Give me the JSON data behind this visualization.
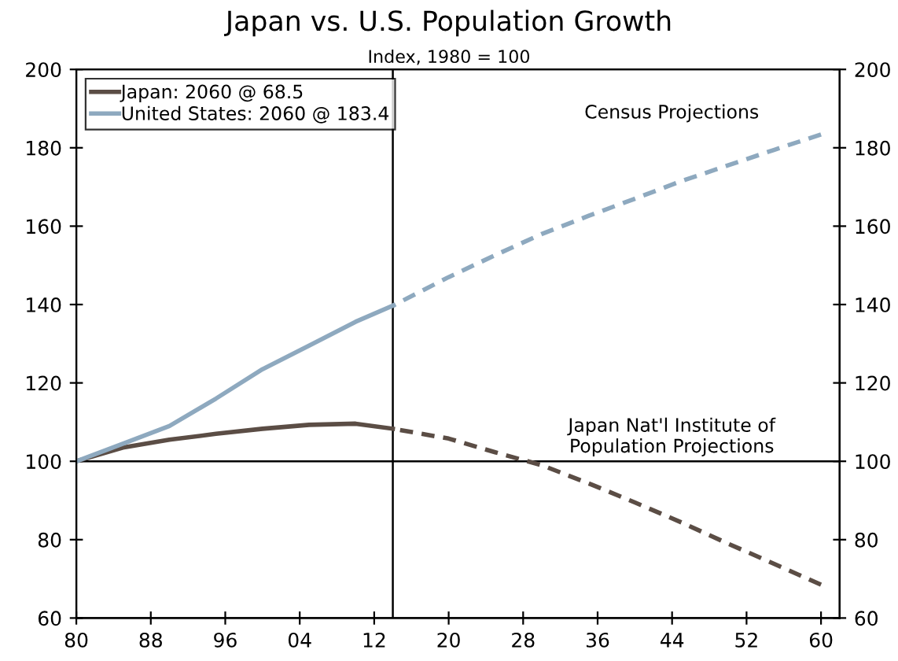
{
  "chart_data": {
    "type": "line",
    "title": "Japan vs. U.S. Population Growth",
    "subtitle": "Index, 1980 = 100",
    "xlim": [
      1980,
      2062
    ],
    "xticks": [
      {
        "value": 1980,
        "label": "80"
      },
      {
        "value": 1988,
        "label": "88"
      },
      {
        "value": 1996,
        "label": "96"
      },
      {
        "value": 2004,
        "label": "04"
      },
      {
        "value": 2012,
        "label": "12"
      },
      {
        "value": 2020,
        "label": "20"
      },
      {
        "value": 2028,
        "label": "28"
      },
      {
        "value": 2036,
        "label": "36"
      },
      {
        "value": 2044,
        "label": "44"
      },
      {
        "value": 2052,
        "label": "52"
      },
      {
        "value": 2060,
        "label": "60"
      }
    ],
    "ylim": [
      60,
      200
    ],
    "yticks": [
      60,
      80,
      100,
      120,
      140,
      160,
      180,
      200
    ],
    "y2lim": [
      60,
      200
    ],
    "y2ticks": [
      60,
      80,
      100,
      120,
      140,
      160,
      180,
      200
    ],
    "series": [
      {
        "name": "Japan: 2060 @ 68.5",
        "color": "#5b4d45",
        "line_style": "solid",
        "x": [
          1980,
          1985,
          1990,
          1995,
          2000,
          2005,
          2010,
          2014
        ],
        "values": [
          100,
          103.5,
          105.5,
          107,
          108.3,
          109.3,
          109.6,
          108.3
        ]
      },
      {
        "name": "United States: 2060 @ 183.4",
        "color": "#8ea9bf",
        "line_style": "solid",
        "x": [
          1980,
          1985,
          1990,
          1995,
          2000,
          2005,
          2010,
          2014
        ],
        "values": [
          100,
          104.5,
          109,
          116,
          123.5,
          129.5,
          135.6,
          139.7
        ]
      },
      {
        "color": "#5b4d45",
        "line_style": "dashed",
        "x": [
          2014,
          2020,
          2025,
          2030,
          2035,
          2040,
          2045,
          2050,
          2055,
          2060
        ],
        "values": [
          108.3,
          105.8,
          102.3,
          99,
          94.4,
          89.5,
          84.4,
          79,
          73.8,
          68.5
        ]
      },
      {
        "color": "#8ea9bf",
        "line_style": "dashed",
        "x": [
          2014,
          2020,
          2025,
          2030,
          2035,
          2040,
          2045,
          2050,
          2055,
          2060
        ],
        "values": [
          139.7,
          147,
          152.6,
          158,
          162.6,
          167,
          171.5,
          175.5,
          179.5,
          183.4
        ]
      }
    ],
    "ref_lines": [
      {
        "axis": "y",
        "value": 100
      },
      {
        "axis": "x",
        "value": 2014
      }
    ],
    "annotations": [
      "Census Projections",
      "Japan Nat'l Institute of\nPopulation Projections"
    ],
    "legend": "top left",
    "grid": false
  }
}
